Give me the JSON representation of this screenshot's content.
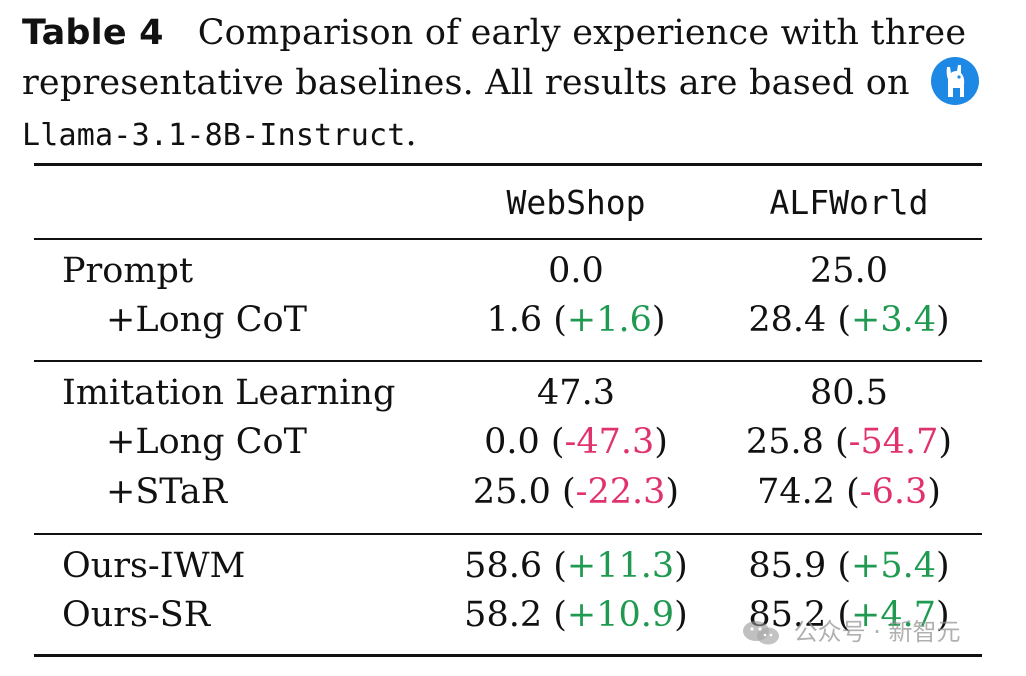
{
  "caption": {
    "label": "Table 4",
    "text": "Comparison of early experience with three representative baselines. All results are based on",
    "model": "Llama-3.1-8B-Instruct",
    "period": ".",
    "icon": "llama-logo-icon"
  },
  "table": {
    "columns": [
      "WebShop",
      "ALFWorld"
    ],
    "groups": [
      {
        "rows": [
          {
            "name": "Prompt",
            "indent": false,
            "webshop": "0.0",
            "webshop_delta": "",
            "alfworld": "25.0",
            "alfworld_delta": ""
          },
          {
            "name": "+Long CoT",
            "indent": true,
            "webshop": "1.6",
            "webshop_delta": "+1.6",
            "alfworld": "28.4",
            "alfworld_delta": "+3.4"
          }
        ]
      },
      {
        "rows": [
          {
            "name": "Imitation Learning",
            "indent": false,
            "webshop": "47.3",
            "webshop_delta": "",
            "alfworld": "80.5",
            "alfworld_delta": ""
          },
          {
            "name": "+Long CoT",
            "indent": true,
            "webshop": "0.0",
            "webshop_delta": "-47.3",
            "alfworld": "25.8",
            "alfworld_delta": "-54.7"
          },
          {
            "name": "+STaR",
            "indent": true,
            "webshop": "25.0",
            "webshop_delta": "-22.3",
            "alfworld": "74.2",
            "alfworld_delta": "-6.3"
          }
        ]
      },
      {
        "rows": [
          {
            "name": "Ours-IWM",
            "indent": false,
            "webshop": "58.6",
            "webshop_delta": "+11.3",
            "alfworld": "85.9",
            "alfworld_delta": "+5.4"
          },
          {
            "name": "Ours-SR",
            "indent": false,
            "webshop": "58.2",
            "webshop_delta": "+10.9",
            "alfworld": "85.2",
            "alfworld_delta": "+4.7"
          }
        ]
      }
    ],
    "colors": {
      "positive": "#1f9a50",
      "negative": "#e0336e"
    }
  },
  "watermark": {
    "text": "公众号 · 新智元",
    "icon": "wechat-icon"
  }
}
